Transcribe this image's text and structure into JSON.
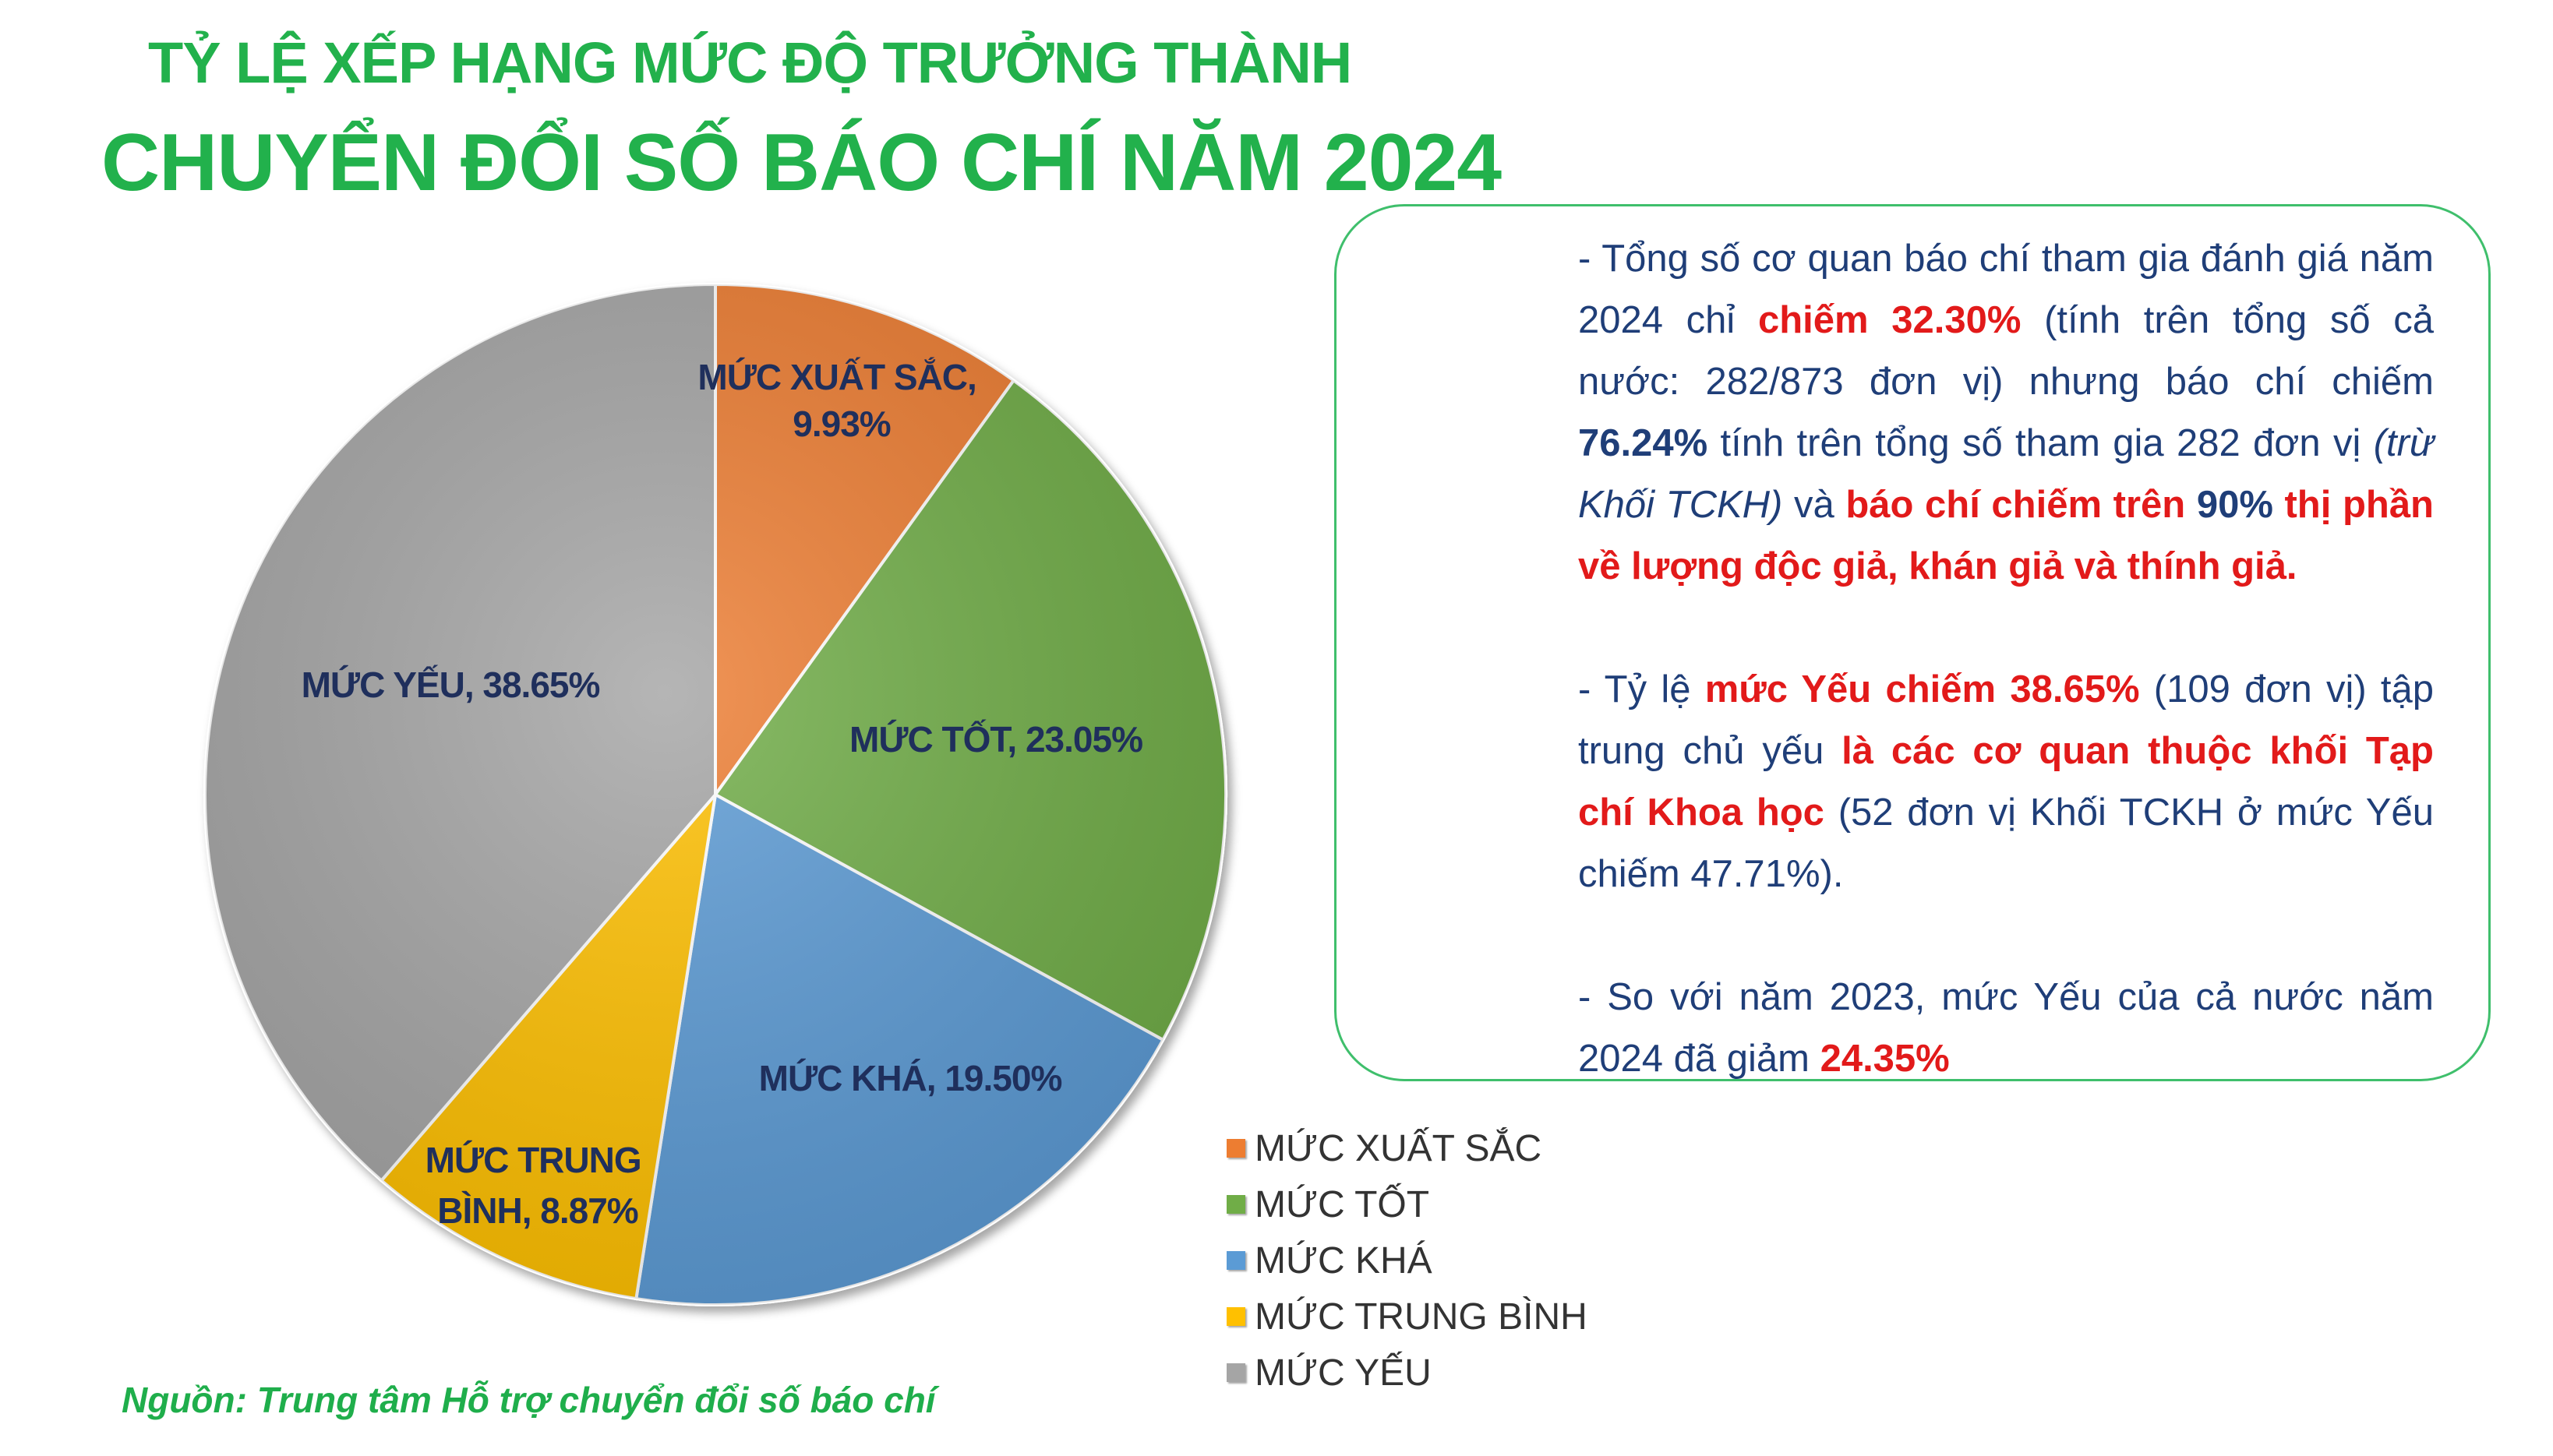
{
  "title": {
    "line1": "TỶ LỆ XẾP HẠNG MỨC ĐỘ TRƯỞNG THÀNH",
    "line2": "CHUYỂN ĐỔI SỐ BÁO CHÍ NĂM 2024"
  },
  "chart_data": {
    "type": "pie",
    "title": "TỶ LỆ XẾP HẠNG MỨC ĐỘ TRƯỞNG THÀNH CHUYỂN ĐỔI SỐ BÁO CHÍ NĂM 2024",
    "categories": [
      "MỨC XUẤT SẮC",
      "MỨC TỐT",
      "MỨC KHÁ",
      "MỨC TRUNG BÌNH",
      "MỨC YẾU"
    ],
    "values": [
      9.93,
      23.05,
      19.5,
      8.87,
      38.65
    ],
    "colors": [
      "#ed7d31",
      "#70ad47",
      "#5b9bd5",
      "#ffc000",
      "#a5a5a5"
    ],
    "data_labels": {
      "xuat_sac": [
        "MỨC XUẤT SẮC,",
        "9.93%"
      ],
      "tot": [
        "MỨC TỐT, 23.05%"
      ],
      "kha": [
        "MỨC KHÁ, 19.50%"
      ],
      "trung_binh": [
        "MỨC TRUNG",
        "BÌNH, 8.87%"
      ],
      "yeu": [
        "MỨC YẾU, 38.65%"
      ]
    },
    "legend_position": "bottom-right"
  },
  "info": {
    "p1": {
      "a": "- Tổng số cơ quan báo chí tham gia đánh giá năm 2024 chỉ ",
      "b": "chiếm 32.30%",
      "c": " (tính trên tổng số cả nước: 282/873 đơn vị) nhưng báo chí chiếm ",
      "d": "76.24%",
      "e": " tính trên tổng số tham gia 282 đơn vị ",
      "f": "(trừ Khối TCKH)",
      "g": " và ",
      "h": "báo chí chiếm trên ",
      "i": "90%",
      "j": " thị phần về lượng độc giả, khán giả và thính giả."
    },
    "p2": {
      "a": "- Tỷ lệ ",
      "b": "mức Yếu chiếm 38.65%",
      "c": " (109 đơn vị) tập trung chủ yếu ",
      "d": "là các cơ quan thuộc khối Tạp chí Khoa học",
      "e": " (52 đơn vị Khối TCKH ở mức Yếu chiếm 47.71%)."
    },
    "p3": {
      "a": "- So với năm 2023, mức Yếu của cả nước năm 2024 đã giảm ",
      "b": "24.35%"
    }
  },
  "source": "Nguồn: Trung tâm Hỗ trợ chuyển đổi số báo chí"
}
